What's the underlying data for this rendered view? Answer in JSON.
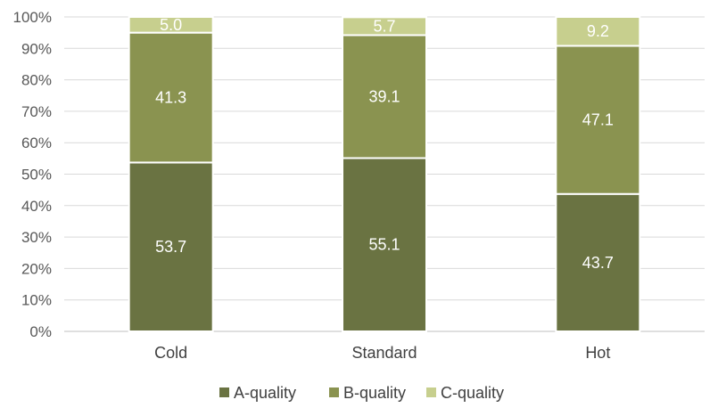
{
  "chart_data": {
    "type": "stacked-bar-100",
    "categories": [
      "Cold",
      "Standard",
      "Hot"
    ],
    "series": [
      {
        "name": "A-quality",
        "values": [
          53.7,
          55.1,
          43.7
        ],
        "color": "#6a7342"
      },
      {
        "name": "B-quality",
        "values": [
          41.3,
          39.1,
          47.1
        ],
        "color": "#8a9350"
      },
      {
        "name": "C-quality",
        "values": [
          5.0,
          5.7,
          9.2
        ],
        "color": "#c7cf8e"
      }
    ],
    "data_labels": [
      [
        "53.7",
        "55.1",
        "43.7"
      ],
      [
        "41.3",
        "39.1",
        "47.1"
      ],
      [
        "5.0",
        "5.7",
        "9.2"
      ]
    ],
    "yticks": [
      "0%",
      "10%",
      "20%",
      "30%",
      "40%",
      "50%",
      "60%",
      "70%",
      "80%",
      "90%",
      "100%"
    ],
    "ylim": [
      0,
      100
    ],
    "grid": true,
    "legend": "bottom"
  }
}
